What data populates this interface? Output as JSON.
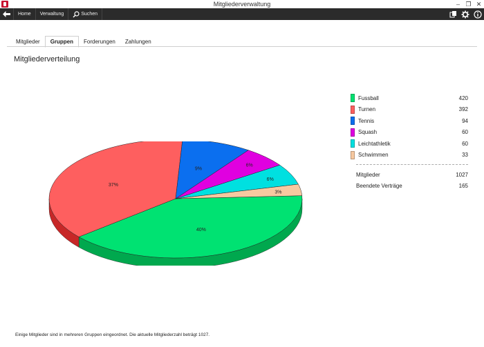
{
  "window": {
    "title": "Mitgliederverwaltung",
    "minimize": "–",
    "restore": "❐",
    "close": "✕"
  },
  "toolbar": {
    "back_icon": "back-arrow-icon",
    "home": "Home",
    "verwaltung": "Verwaltung",
    "search": "Suchen",
    "search_icon": "search-icon",
    "right_icons": [
      "cards-icon",
      "gear-icon",
      "info-icon"
    ]
  },
  "tabs": [
    {
      "label": "Mitglieder",
      "active": false
    },
    {
      "label": "Gruppen",
      "active": true
    },
    {
      "label": "Forderungen",
      "active": false
    },
    {
      "label": "Zahlungen",
      "active": false
    }
  ],
  "page": {
    "title": "Mitgliederverteilung"
  },
  "chart_data": {
    "type": "pie",
    "labels": [
      "Fussball",
      "Turnen",
      "Tennis",
      "Squash",
      "Leichtathletik",
      "Schwimmen"
    ],
    "values": [
      420,
      392,
      94,
      60,
      60,
      33
    ],
    "percent_labels": [
      "40%",
      "37%",
      "9%",
      "6%",
      "6%",
      "3%"
    ],
    "colors": [
      "#00e272",
      "#fe5f5f",
      "#0b6fef",
      "#e000e0",
      "#00e0e0",
      "#f7c9a0"
    ],
    "side_colors": [
      "#00a84e",
      "#c72727",
      "#0650a6",
      "#a000a0",
      "#00a4a4",
      "#c99a6e"
    ],
    "style": "3d"
  },
  "legend": [
    {
      "name": "Fussball",
      "value": "420",
      "color": "#00e272"
    },
    {
      "name": "Turnen",
      "value": "392",
      "color": "#fe5f5f"
    },
    {
      "name": "Tennis",
      "value": "94",
      "color": "#0b6fef"
    },
    {
      "name": "Squash",
      "value": "60",
      "color": "#e000e0"
    },
    {
      "name": "Leichtathletik",
      "value": "60",
      "color": "#00e0e0"
    },
    {
      "name": "Schwimmen",
      "value": "33",
      "color": "#f7c9a0"
    }
  ],
  "summary": [
    {
      "name": "Mitglieder",
      "value": "1027"
    },
    {
      "name": "Beendete Verträge",
      "value": "165"
    }
  ],
  "footer": {
    "note": "Einige Mitglieder sind in mehreren Gruppen eingeordnet. Die aktuelle Mitgliederzahl beträgt 1027."
  }
}
